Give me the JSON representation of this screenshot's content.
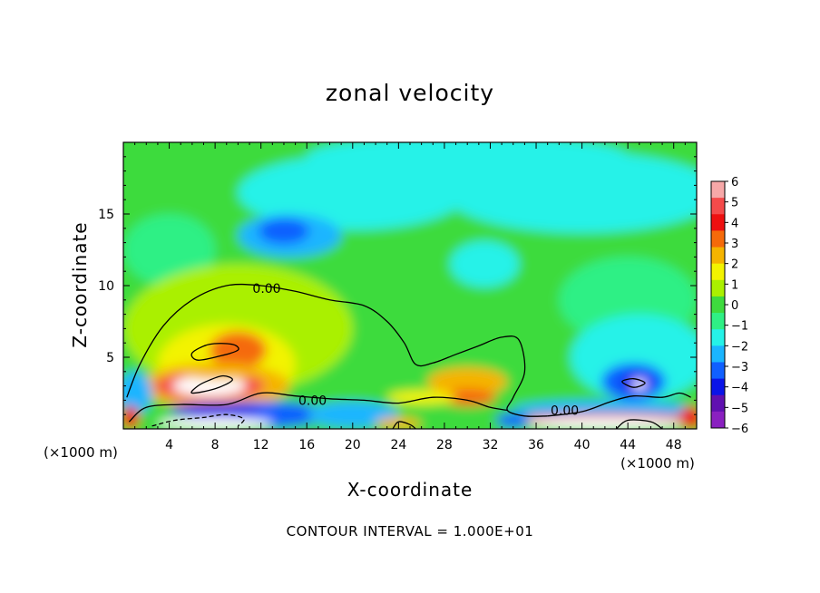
{
  "chart_data": {
    "type": "heatmap",
    "title": "zonal velocity",
    "xlabel": "X-coordinate",
    "ylabel": "Z-coordinate",
    "x_unit_label": "(×1000 m)",
    "xlim": [
      0,
      50
    ],
    "ylim": [
      0,
      20
    ],
    "x_ticks": [
      4,
      8,
      12,
      16,
      20,
      24,
      28,
      32,
      36,
      40,
      44,
      48
    ],
    "y_ticks": [
      5,
      10,
      15
    ],
    "colorbar": {
      "levels": [
        6,
        5,
        4,
        3,
        2,
        1,
        0,
        -1,
        -2,
        -3,
        -4,
        -5,
        -6
      ],
      "labels": [
        "6",
        "5",
        "4",
        "3",
        "2",
        "1",
        "0",
        "−1",
        "−2",
        "−3",
        "−4",
        "−5",
        "−6"
      ],
      "colors": [
        "#f6a8a8",
        "#f44a4a",
        "#ee1010",
        "#f56a0a",
        "#f5b400",
        "#f3f300",
        "#aaf000",
        "#3edb3e",
        "#2ff085",
        "#25f2e8",
        "#1ab5ff",
        "#1060ff",
        "#0a14e8",
        "#6010b0",
        "#8a20c0"
      ]
    },
    "contour_labels": [
      "0.00",
      "0.00",
      "0.00"
    ],
    "contour_interval": "CONTOUR INTERVAL = 1.000E+01",
    "regions": [
      {
        "kind": "background",
        "value": 0.0
      },
      {
        "kind": "blob",
        "x": 20,
        "y": 16.5,
        "rx": 10,
        "ry": 2.6,
        "value": -1.8
      },
      {
        "kind": "blob",
        "x": 40,
        "y": 16.5,
        "rx": 12,
        "ry": 2.8,
        "value": -1.8
      },
      {
        "kind": "blob",
        "x": 30,
        "y": 19.0,
        "rx": 14,
        "ry": 1.5,
        "value": -1.6
      },
      {
        "kind": "blob",
        "x": 14.5,
        "y": 13.5,
        "rx": 4.5,
        "ry": 1.5,
        "value": -2.2
      },
      {
        "kind": "blob",
        "x": 14,
        "y": 13.8,
        "rx": 2.2,
        "ry": 0.9,
        "value": -3.0
      },
      {
        "kind": "blob",
        "x": 31.5,
        "y": 11.5,
        "rx": 3,
        "ry": 1.6,
        "value": -2.0
      },
      {
        "kind": "blob",
        "x": 4,
        "y": 12.5,
        "rx": 4,
        "ry": 2.5,
        "value": -1.2
      },
      {
        "kind": "blob",
        "x": 44,
        "y": 9,
        "rx": 6,
        "ry": 3,
        "value": -0.9
      },
      {
        "kind": "blob",
        "x": 10,
        "y": 7,
        "rx": 10,
        "ry": 4.5,
        "value": 0.6
      },
      {
        "kind": "blob",
        "x": 9,
        "y": 4.5,
        "rx": 6,
        "ry": 2.8,
        "value": 1.3
      },
      {
        "kind": "blob",
        "x": 8,
        "y": 3.0,
        "rx": 6.5,
        "ry": 1.6,
        "value": 3.0
      },
      {
        "kind": "blob",
        "x": 10,
        "y": 5.5,
        "rx": 2.5,
        "ry": 1.3,
        "value": 3.5
      },
      {
        "kind": "blob",
        "x": 7.5,
        "y": 3.0,
        "rx": 4.8,
        "ry": 1.0,
        "value": 5.0
      },
      {
        "kind": "blob",
        "x": 7.5,
        "y": 3.0,
        "rx": 3.2,
        "ry": 0.7,
        "value": 6.5
      },
      {
        "kind": "blob",
        "x": 8.5,
        "y": 4.0,
        "rx": 3.5,
        "ry": 0.6,
        "value": 2.8
      },
      {
        "kind": "blob",
        "x": 30,
        "y": 3.3,
        "rx": 3.5,
        "ry": 1.0,
        "value": 2.2
      },
      {
        "kind": "blob",
        "x": 30,
        "y": 2.2,
        "rx": 2.5,
        "ry": 0.6,
        "value": 3.5
      },
      {
        "kind": "blob",
        "x": 26,
        "y": 2.2,
        "rx": 3,
        "ry": 0.5,
        "value": 1.8
      },
      {
        "kind": "blob",
        "x": 45,
        "y": 5,
        "rx": 6,
        "ry": 3,
        "value": -1.6
      },
      {
        "kind": "blob",
        "x": 44.5,
        "y": 3.3,
        "rx": 2.8,
        "ry": 1.3,
        "value": -3.2
      },
      {
        "kind": "blob",
        "x": 44.8,
        "y": 3.2,
        "rx": 1.4,
        "ry": 0.7,
        "value": -4.5
      },
      {
        "kind": "blob",
        "x": 45,
        "y": 3.1,
        "rx": 0.6,
        "ry": 0.35,
        "value": 6.5
      },
      {
        "kind": "blob",
        "x": 1,
        "y": 2.5,
        "rx": 1.5,
        "ry": 1.5,
        "value": -2.5
      },
      {
        "kind": "blob",
        "x": 12,
        "y": 1.0,
        "rx": 6,
        "ry": 0.9,
        "value": -3.5
      },
      {
        "kind": "blob",
        "x": 8,
        "y": 1.3,
        "rx": 4,
        "ry": 0.5,
        "value": -4.5
      },
      {
        "kind": "blob",
        "x": 20,
        "y": 1.0,
        "rx": 4,
        "ry": 0.9,
        "value": -2.2
      },
      {
        "kind": "blob",
        "x": 42,
        "y": 1.4,
        "rx": 8,
        "ry": 0.6,
        "value": -2.5
      },
      {
        "kind": "blob",
        "x": 42,
        "y": 0.6,
        "rx": 9,
        "ry": 0.5,
        "value": 4.5
      },
      {
        "kind": "blob",
        "x": 42,
        "y": 0.4,
        "rx": 7,
        "ry": 0.4,
        "value": 6.5
      },
      {
        "kind": "blob",
        "x": 8,
        "y": 0.4,
        "rx": 5,
        "ry": 0.4,
        "value": 6.5
      },
      {
        "kind": "blob",
        "x": 0.6,
        "y": 0.8,
        "rx": 0.8,
        "ry": 0.8,
        "value": 4.0
      },
      {
        "kind": "blob",
        "x": 49.5,
        "y": 0.8,
        "rx": 1.0,
        "ry": 0.8,
        "value": 4.0
      },
      {
        "kind": "blob",
        "x": 24,
        "y": 0.4,
        "rx": 2,
        "ry": 0.4,
        "value": 2.5
      },
      {
        "kind": "blob",
        "x": 34,
        "y": 0.6,
        "rx": 1.5,
        "ry": 0.5,
        "value": -3.0
      }
    ],
    "contours": [
      {
        "dashed": false,
        "points": [
          [
            0.3,
            2.2
          ],
          [
            1.5,
            4.6
          ],
          [
            3.5,
            7.2
          ],
          [
            6,
            9.0
          ],
          [
            9,
            10.0
          ],
          [
            12,
            10.0
          ],
          [
            15,
            9.6
          ],
          [
            18,
            9.0
          ],
          [
            21,
            8.6
          ],
          [
            23,
            7.5
          ],
          [
            24.5,
            6.0
          ],
          [
            25.5,
            4.5
          ],
          [
            27,
            4.6
          ],
          [
            29,
            5.2
          ],
          [
            31,
            5.8
          ],
          [
            33,
            6.4
          ],
          [
            34.5,
            6.2
          ],
          [
            35,
            4.0
          ],
          [
            34,
            2.2
          ],
          [
            33.5,
            1.3
          ],
          [
            35,
            0.9
          ],
          [
            37,
            0.9
          ]
        ]
      },
      {
        "dashed": false,
        "points": [
          [
            0.5,
            0.5
          ],
          [
            2,
            1.5
          ],
          [
            5,
            1.7
          ],
          [
            9,
            1.7
          ],
          [
            12,
            2.5
          ],
          [
            15,
            2.3
          ],
          [
            18,
            2.1
          ],
          [
            21,
            2.0
          ],
          [
            24,
            1.8
          ],
          [
            27,
            2.2
          ],
          [
            30,
            2.0
          ],
          [
            32,
            1.5
          ],
          [
            33.5,
            1.3
          ]
        ]
      },
      {
        "dashed": false,
        "points": [
          [
            37,
            0.9
          ],
          [
            40,
            1.2
          ],
          [
            42.5,
            1.9
          ],
          [
            44.5,
            2.3
          ],
          [
            47,
            2.2
          ],
          [
            48.5,
            2.5
          ],
          [
            49.5,
            2.2
          ]
        ]
      },
      {
        "dashed": false,
        "closed": true,
        "points": [
          [
            6,
            5.3
          ],
          [
            7.5,
            5.9
          ],
          [
            9.5,
            5.9
          ],
          [
            10,
            5.5
          ],
          [
            8.5,
            5.1
          ],
          [
            6.5,
            4.8
          ]
        ]
      },
      {
        "dashed": false,
        "closed": true,
        "points": [
          [
            6,
            2.5
          ],
          [
            8,
            2.8
          ],
          [
            9.5,
            3.4
          ],
          [
            8.7,
            3.7
          ],
          [
            7.5,
            3.4
          ],
          [
            6.5,
            3.0
          ]
        ]
      },
      {
        "dashed": false,
        "closed": true,
        "points": [
          [
            43.5,
            3.3
          ],
          [
            44.5,
            3.5
          ],
          [
            45.5,
            3.2
          ],
          [
            44.5,
            2.9
          ]
        ]
      },
      {
        "dashed": true,
        "points": [
          [
            2.5,
            0.2
          ],
          [
            4.5,
            0.6
          ],
          [
            7,
            0.8
          ],
          [
            9,
            1.0
          ],
          [
            10.5,
            0.7
          ],
          [
            10,
            0.2
          ]
        ]
      },
      {
        "dashed": false,
        "points": [
          [
            23.5,
            0.0
          ],
          [
            24,
            0.5
          ],
          [
            25,
            0.3
          ],
          [
            25.5,
            0.0
          ]
        ]
      },
      {
        "dashed": false,
        "points": [
          [
            43,
            0.0
          ],
          [
            44,
            0.6
          ],
          [
            46,
            0.5
          ],
          [
            47,
            0.0
          ]
        ]
      }
    ]
  }
}
